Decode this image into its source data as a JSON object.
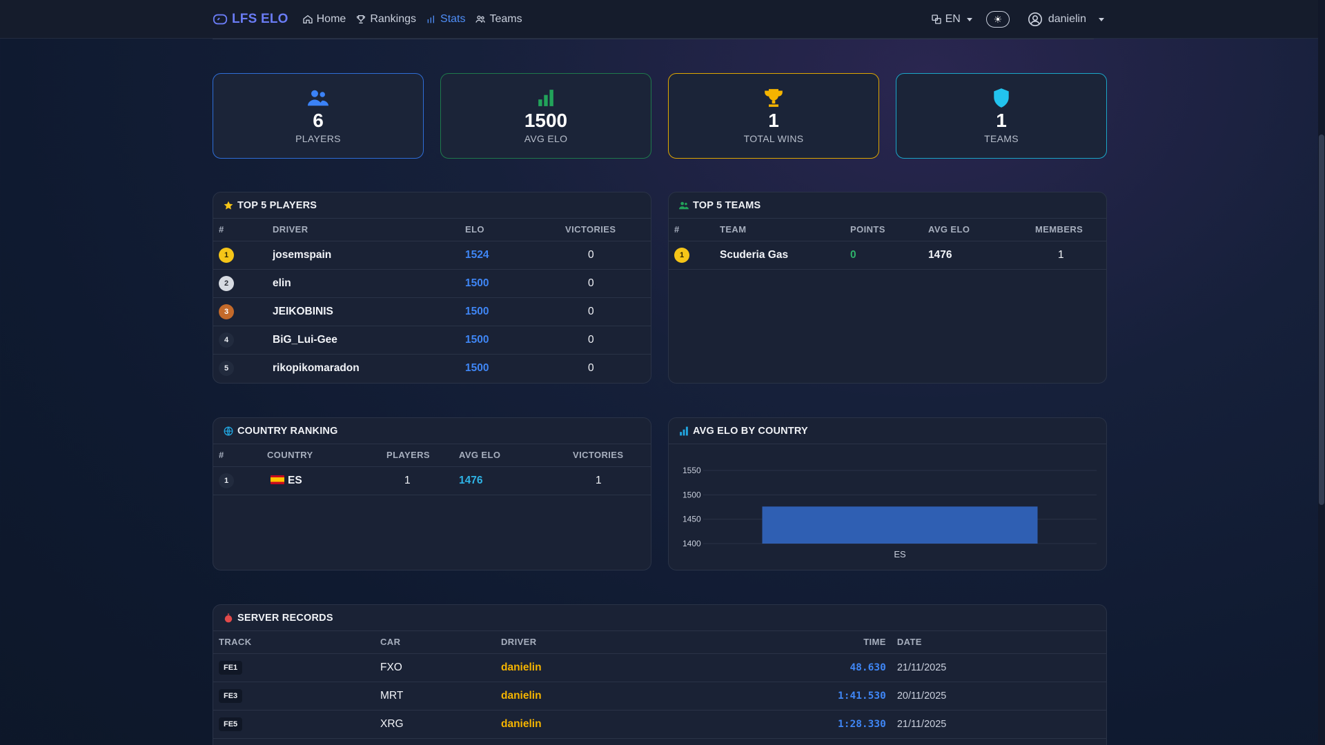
{
  "nav": {
    "brand": "LFS ELO",
    "links": [
      {
        "label": "Home"
      },
      {
        "label": "Rankings"
      },
      {
        "label": "Stats"
      },
      {
        "label": "Teams"
      }
    ],
    "language": "EN",
    "user": "danielin"
  },
  "stats": [
    {
      "value": "6",
      "label": "PLAYERS",
      "icon": "users-icon",
      "color": "#3b82f6"
    },
    {
      "value": "1500",
      "label": "AVG ELO",
      "icon": "bar-chart-icon",
      "color": "#22a35a"
    },
    {
      "value": "1",
      "label": "TOTAL WINS",
      "icon": "trophy-icon",
      "color": "#f5b400"
    },
    {
      "value": "1",
      "label": "TEAMS",
      "icon": "shield-icon",
      "color": "#22c3ee"
    }
  ],
  "top_players": {
    "title": "TOP 5 PLAYERS",
    "headers": [
      "#",
      "DRIVER",
      "ELO",
      "VICTORIES"
    ],
    "rows": [
      {
        "rank": "1",
        "driver": "josemspain",
        "elo": "1524",
        "victories": "0"
      },
      {
        "rank": "2",
        "driver": "elin",
        "elo": "1500",
        "victories": "0"
      },
      {
        "rank": "3",
        "driver": "JEIKOBINIS",
        "elo": "1500",
        "victories": "0"
      },
      {
        "rank": "4",
        "driver": "BiG_Lui-Gee",
        "elo": "1500",
        "victories": "0"
      },
      {
        "rank": "5",
        "driver": "rikopikomaradon",
        "elo": "1500",
        "victories": "0"
      }
    ]
  },
  "top_teams": {
    "title": "TOP 5 TEAMS",
    "headers": [
      "#",
      "TEAM",
      "POINTS",
      "AVG ELO",
      "MEMBERS"
    ],
    "rows": [
      {
        "rank": "1",
        "team": "Scuderia Gas",
        "points": "0",
        "avg_elo": "1476",
        "members": "1"
      }
    ]
  },
  "country_ranking": {
    "title": "COUNTRY RANKING",
    "headers": [
      "#",
      "COUNTRY",
      "PLAYERS",
      "AVG ELO",
      "VICTORIES"
    ],
    "rows": [
      {
        "rank": "1",
        "country": "ES",
        "players": "1",
        "avg_elo": "1476",
        "victories": "1"
      }
    ]
  },
  "avg_elo_chart": {
    "title": "AVG ELO BY COUNTRY"
  },
  "chart_data": {
    "type": "bar",
    "categories": [
      "ES"
    ],
    "values": [
      1476
    ],
    "ylim": [
      1400,
      1550
    ],
    "yticks": [
      1400,
      1450,
      1500,
      1550
    ],
    "bar_color": "#2f5fb3",
    "grid": true
  },
  "server_records": {
    "title": "SERVER RECORDS",
    "headers": [
      "TRACK",
      "CAR",
      "DRIVER",
      "TIME",
      "DATE"
    ],
    "rows": [
      {
        "track": "FE1",
        "car": "FXO",
        "driver": "danielin",
        "time": "48.630",
        "date": "21/11/2025"
      },
      {
        "track": "FE3",
        "car": "MRT",
        "driver": "danielin",
        "time": "1:41.530",
        "date": "20/11/2025"
      },
      {
        "track": "FE5",
        "car": "XRG",
        "driver": "danielin",
        "time": "1:28.330",
        "date": "21/11/2025"
      }
    ]
  }
}
